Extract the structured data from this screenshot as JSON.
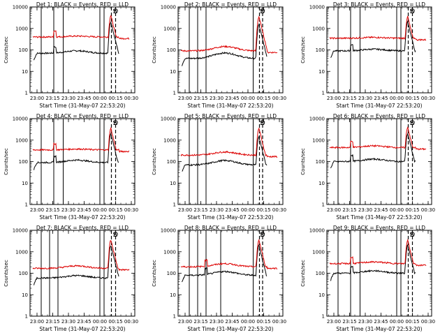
{
  "chart_data": [
    {
      "type": "line",
      "title": "Det 1: BLACK = Events, RED = LLD",
      "xlabel": "Start Time (31-May-07 22:53:20)",
      "ylabel": "Counts/sec",
      "yscale": "log",
      "ylim": [
        1,
        10000
      ],
      "xticks": [
        "23:00",
        "23:15",
        "23:30",
        "23:45",
        "00:00",
        "00:15",
        "00:30"
      ],
      "yticks": [
        "1",
        "10",
        "100",
        "1000",
        "10000"
      ],
      "markers": [
        "S",
        "E",
        "D"
      ],
      "vlines_solid": [
        "23:04",
        "23:16",
        "23:25",
        "00:00",
        "00:04"
      ],
      "vlines_dashed": [
        "00:11",
        "00:15"
      ],
      "series": [
        {
          "color": "#000000",
          "level": 70,
          "bump": 1.3,
          "spike": "23:17",
          "peak": 2000
        },
        {
          "color": "#dd0000",
          "level": 400,
          "bump": 1.1,
          "spike": "23:17",
          "peak": 4000
        }
      ]
    },
    {
      "type": "line",
      "title": "Det 2: BLACK = Events, RED = LLD",
      "xlabel": "Start Time (31-May-07 22:53:20)",
      "ylabel": "Counts/sec",
      "yscale": "log",
      "ylim": [
        1,
        10000
      ],
      "xticks": [
        "23:00",
        "23:15",
        "23:30",
        "23:45",
        "00:00",
        "00:15",
        "00:30"
      ],
      "yticks": [
        "1",
        "10",
        "100",
        "1000",
        "10000"
      ],
      "markers": [
        "S",
        "E",
        "D"
      ],
      "vlines_solid": [
        "23:04",
        "23:12",
        "23:20",
        "00:05"
      ],
      "vlines_dashed": [
        "00:11",
        "00:14"
      ],
      "series": [
        {
          "color": "#000000",
          "level": 40,
          "bump": 1.8,
          "spike": "",
          "peak": 1500
        },
        {
          "color": "#dd0000",
          "level": 90,
          "bump": 1.6,
          "spike": "",
          "peak": 3500
        }
      ]
    },
    {
      "type": "line",
      "title": "Det 3: BLACK = Events, RED = LLD",
      "xlabel": "Start Time (31-May-07 22:53:20)",
      "ylabel": "Counts/sec",
      "yscale": "log",
      "ylim": [
        1,
        10000
      ],
      "xticks": [
        "23:00",
        "23:15",
        "23:30",
        "23:45",
        "00:00",
        "00:15",
        "00:30"
      ],
      "yticks": [
        "1",
        "10",
        "100",
        "1000",
        "10000"
      ],
      "markers": [
        "S",
        "E",
        "D"
      ],
      "vlines_solid": [
        "23:04",
        "23:16",
        "23:25",
        "00:00",
        "00:04"
      ],
      "vlines_dashed": [
        "00:11",
        "00:15"
      ],
      "series": [
        {
          "color": "#000000",
          "level": 90,
          "bump": 1.2,
          "spike": "23:17",
          "peak": 2000
        },
        {
          "color": "#dd0000",
          "level": 350,
          "bump": 1.1,
          "spike": "",
          "peak": 3500
        }
      ]
    },
    {
      "type": "line",
      "title": "Det 4: BLACK = Events, RED = LLD",
      "xlabel": "Start Time (31-May-07 22:53:20)",
      "ylabel": "Counts/sec",
      "yscale": "log",
      "ylim": [
        1,
        10000
      ],
      "xticks": [
        "23:00",
        "23:15",
        "23:30",
        "23:45",
        "00:00",
        "00:15",
        "00:30"
      ],
      "yticks": [
        "1",
        "10",
        "100",
        "1000",
        "10000"
      ],
      "markers": [
        "S",
        "E",
        "D"
      ],
      "vlines_solid": [
        "23:04",
        "23:16",
        "23:25",
        "00:00",
        "00:04"
      ],
      "vlines_dashed": [
        "00:11",
        "00:15"
      ],
      "series": [
        {
          "color": "#000000",
          "level": 90,
          "bump": 1.3,
          "spike": "23:17",
          "peak": 2000
        },
        {
          "color": "#dd0000",
          "level": 350,
          "bump": 1.1,
          "spike": "23:17",
          "peak": 3500
        }
      ]
    },
    {
      "type": "line",
      "title": "Det 5: BLACK = Events, RED = LLD",
      "xlabel": "Start Time (31-May-07 22:53:20)",
      "ylabel": "Counts/sec",
      "yscale": "log",
      "ylim": [
        1,
        10000
      ],
      "xticks": [
        "23:00",
        "23:15",
        "23:30",
        "23:45",
        "00:00",
        "00:15",
        "00:30"
      ],
      "yticks": [
        "1",
        "10",
        "100",
        "1000",
        "10000"
      ],
      "markers": [
        "S",
        "E",
        "D"
      ],
      "vlines_solid": [
        "23:04",
        "23:12",
        "23:20",
        "00:05"
      ],
      "vlines_dashed": [
        "00:11",
        "00:14"
      ],
      "series": [
        {
          "color": "#000000",
          "level": 70,
          "bump": 1.6,
          "spike": "",
          "peak": 1500
        },
        {
          "color": "#dd0000",
          "level": 200,
          "bump": 1.4,
          "spike": "",
          "peak": 3500
        }
      ]
    },
    {
      "type": "line",
      "title": "Det 6: BLACK = Events, RED = LLD",
      "xlabel": "Start Time (31-May-07 22:53:20)",
      "ylabel": "Counts/sec",
      "yscale": "log",
      "ylim": [
        1,
        10000
      ],
      "xticks": [
        "23:00",
        "23:15",
        "23:30",
        "23:45",
        "00:00",
        "00:15",
        "00:30"
      ],
      "yticks": [
        "1",
        "10",
        "100",
        "1000",
        "10000"
      ],
      "markers": [
        "S",
        "E",
        "D"
      ],
      "vlines_solid": [
        "23:04",
        "23:16",
        "23:25",
        "00:00",
        "00:04"
      ],
      "vlines_dashed": [
        "00:11",
        "00:15"
      ],
      "series": [
        {
          "color": "#000000",
          "level": 100,
          "bump": 1.3,
          "spike": "23:17",
          "peak": 2000
        },
        {
          "color": "#dd0000",
          "level": 450,
          "bump": 1.2,
          "spike": "23:17",
          "peak": 4000
        }
      ]
    },
    {
      "type": "line",
      "title": "Det 7: BLACK = Events, RED = LLD",
      "xlabel": "Start Time (31-May-07 22:53:20)",
      "ylabel": "Counts/sec",
      "yscale": "log",
      "ylim": [
        1,
        10000
      ],
      "xticks": [
        "23:00",
        "23:15",
        "23:30",
        "23:45",
        "00:00",
        "00:15",
        "00:30"
      ],
      "yticks": [
        "1",
        "10",
        "100",
        "1000",
        "10000"
      ],
      "markers": [
        "S",
        "E",
        "D"
      ],
      "vlines_solid": [
        "23:04",
        "23:12",
        "23:20",
        "00:00",
        "00:04"
      ],
      "vlines_dashed": [
        "00:11",
        "00:15"
      ],
      "series": [
        {
          "color": "#000000",
          "level": 60,
          "bump": 1.3,
          "spike": "",
          "peak": 2000
        },
        {
          "color": "#dd0000",
          "level": 170,
          "bump": 1.3,
          "spike": "",
          "peak": 3500
        }
      ]
    },
    {
      "type": "line",
      "title": "Det 8: BLACK = Events, RED = LLD",
      "xlabel": "Start Time (31-May-07 22:53:20)",
      "ylabel": "Counts/sec",
      "yscale": "log",
      "ylim": [
        1,
        10000
      ],
      "xticks": [
        "23:00",
        "23:15",
        "23:30",
        "23:45",
        "00:00",
        "00:15",
        "00:30"
      ],
      "yticks": [
        "1",
        "10",
        "100",
        "1000",
        "10000"
      ],
      "markers": [
        "S",
        "E",
        "D"
      ],
      "vlines_solid": [
        "23:04",
        "23:12",
        "23:20",
        "23:34",
        "00:05"
      ],
      "vlines_dashed": [
        "00:11",
        "00:14"
      ],
      "series": [
        {
          "color": "#000000",
          "level": 80,
          "bump": 1.5,
          "spike": "23:20",
          "peak": 2000
        },
        {
          "color": "#dd0000",
          "level": 200,
          "bump": 1.4,
          "spike": "23:20",
          "peak": 3500
        }
      ]
    },
    {
      "type": "line",
      "title": "Det 9: BLACK = Events, RED = LLD",
      "xlabel": "Start Time (31-May-07 22:53:20)",
      "ylabel": "Counts/sec",
      "yscale": "log",
      "ylim": [
        1,
        10000
      ],
      "xticks": [
        "23:00",
        "23:15",
        "23:30",
        "23:45",
        "00:00",
        "00:15",
        "00:30"
      ],
      "yticks": [
        "1",
        "10",
        "100",
        "1000",
        "10000"
      ],
      "markers": [
        "S",
        "E",
        "D"
      ],
      "vlines_solid": [
        "23:04",
        "23:16",
        "23:25",
        "00:00",
        "00:04"
      ],
      "vlines_dashed": [
        "00:11",
        "00:15"
      ],
      "series": [
        {
          "color": "#000000",
          "level": 100,
          "bump": 1.3,
          "spike": "23:17",
          "peak": 2000
        },
        {
          "color": "#dd0000",
          "level": 280,
          "bump": 1.2,
          "spike": "23:17",
          "peak": 3500
        }
      ]
    }
  ]
}
